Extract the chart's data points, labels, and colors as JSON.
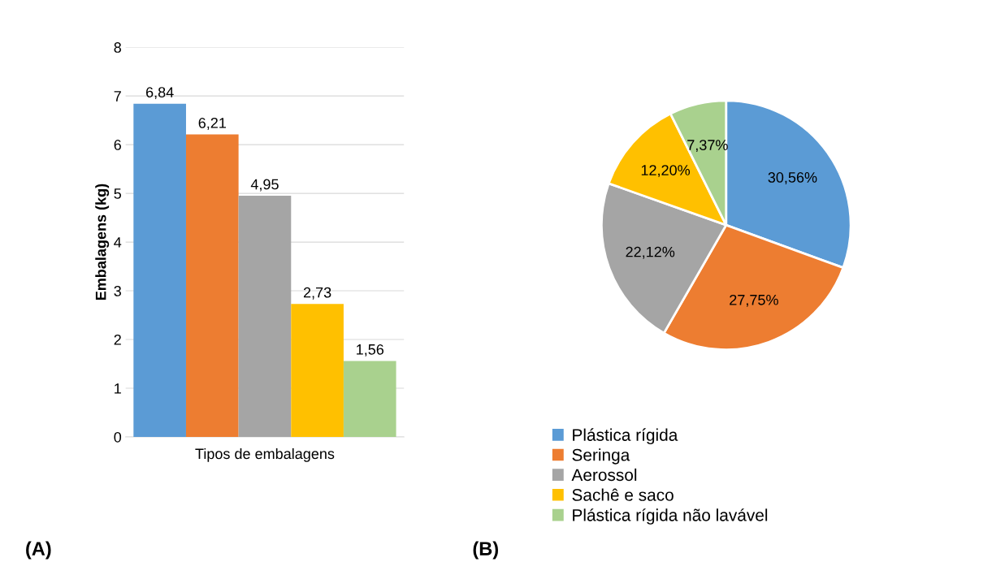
{
  "chart_data": [
    {
      "type": "bar",
      "ylabel": "Embalagens (kg)",
      "xlabel": "Tipos de embalagens",
      "categories": [
        null,
        null,
        null,
        null,
        null
      ],
      "ylim": [
        0,
        8
      ],
      "yticks": [
        0,
        1,
        2,
        3,
        4,
        5,
        6,
        7,
        8
      ],
      "grid": "y",
      "annotations": [
        "(A)"
      ],
      "series": [
        {
          "colors": [
            "#5b9bd5",
            "#ed7d31",
            "#a5a5a5",
            "#ffc000",
            "#a9d18e"
          ],
          "values": [
            6.84,
            6.21,
            4.95,
            2.73,
            1.56
          ],
          "value_labels": [
            "6,84",
            "6,21",
            "4,95",
            "2,73",
            "1,56"
          ]
        }
      ]
    },
    {
      "type": "pie",
      "categories": [
        "Plástica rígida",
        "Seringa",
        "Aerossol",
        "Sachê e saco",
        "Plástica rígida não lavável"
      ],
      "values": [
        30.56,
        27.75,
        22.12,
        12.2,
        7.37
      ],
      "value_labels": [
        "30,56%",
        "27,75%",
        "22,12%",
        "12,20%",
        "7,37%"
      ],
      "colors": [
        "#5b9bd5",
        "#ed7d31",
        "#a5a5a5",
        "#ffc000",
        "#a9d18e"
      ],
      "legend": "bottom",
      "annotations": [
        "(B)"
      ]
    }
  ]
}
